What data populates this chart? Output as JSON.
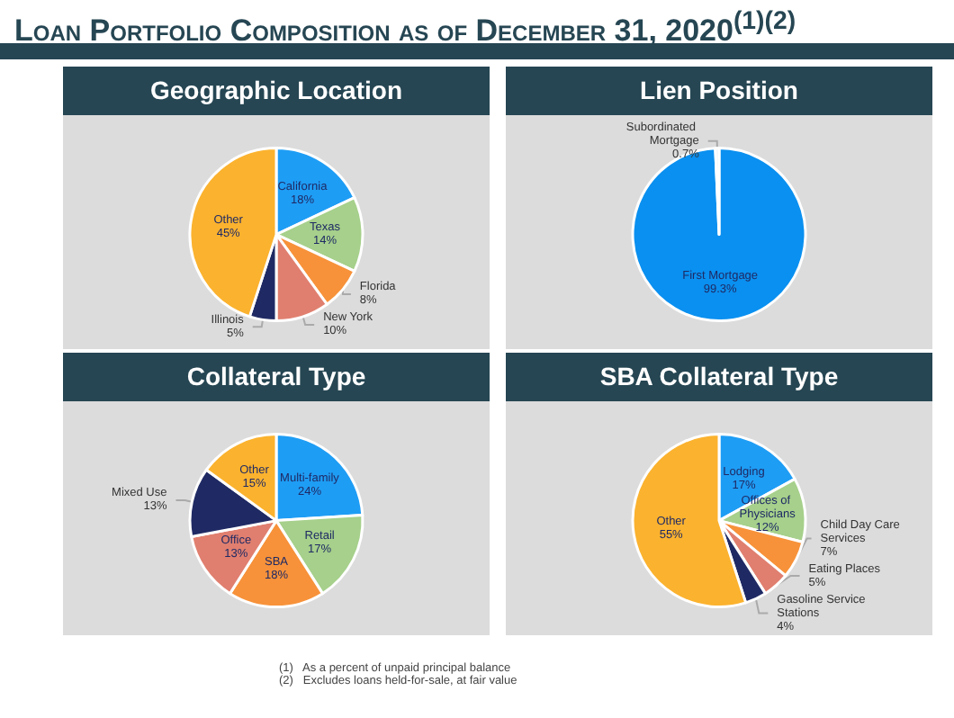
{
  "chart_data": [
    {
      "type": "other",
      "title": "Loan Portfolio Composition as of December 31, 2020$^{(1)(2)}$",
      "annotations": [
        "(1)   As a percent of unpaid principal balance",
        "(2)   Excludes loans held-for-sale, at fair value"
      ]
    },
    {
      "type": "pie",
      "title": "Geographic Location",
      "categories": [
        "California",
        "Texas",
        "Florida",
        "New York",
        "Illinois",
        "Other"
      ],
      "values": [
        18,
        14,
        8,
        10,
        5,
        45
      ],
      "value_labels": [
        "18%",
        "14%",
        "8%",
        "10%",
        "5%",
        "45%"
      ],
      "colors": [
        "#1e9df5",
        "#a6d08b",
        "#f7923a",
        "#e07f6f",
        "#1f2a64",
        "#fbb22e"
      ]
    },
    {
      "type": "pie",
      "title": "Lien Position",
      "categories": [
        "First Mortgage",
        "Subordinated Mortgage"
      ],
      "values": [
        99.3,
        0.7
      ],
      "value_labels": [
        "99.3%",
        "0.7%"
      ],
      "colors": [
        "#0a90f0",
        "#e8f0f8"
      ]
    },
    {
      "type": "pie",
      "title": "Collateral Type",
      "categories": [
        "Multi-family",
        "Retail",
        "SBA",
        "Office",
        "Mixed Use",
        "Other"
      ],
      "values": [
        24,
        17,
        18,
        13,
        13,
        15
      ],
      "value_labels": [
        "24%",
        "17%",
        "18%",
        "13%",
        "13%",
        "15%"
      ],
      "colors": [
        "#1e9df5",
        "#a6d08b",
        "#f7923a",
        "#e07f6f",
        "#1f2a64",
        "#fbb22e"
      ]
    },
    {
      "type": "pie",
      "title": "SBA Collateral Type",
      "categories": [
        "Lodging",
        "Offices of Physicians",
        "Child Day Care Services",
        "Eating Places",
        "Gasoline Service Stations",
        "Other"
      ],
      "values": [
        17,
        12,
        7,
        5,
        4,
        55
      ],
      "value_labels": [
        "17%",
        "12%",
        "7%",
        "5%",
        "4%",
        "55%"
      ],
      "colors": [
        "#1e9df5",
        "#a6d08b",
        "#f7923a",
        "#e07f6f",
        "#1f2a64",
        "#fbb22e"
      ]
    }
  ]
}
